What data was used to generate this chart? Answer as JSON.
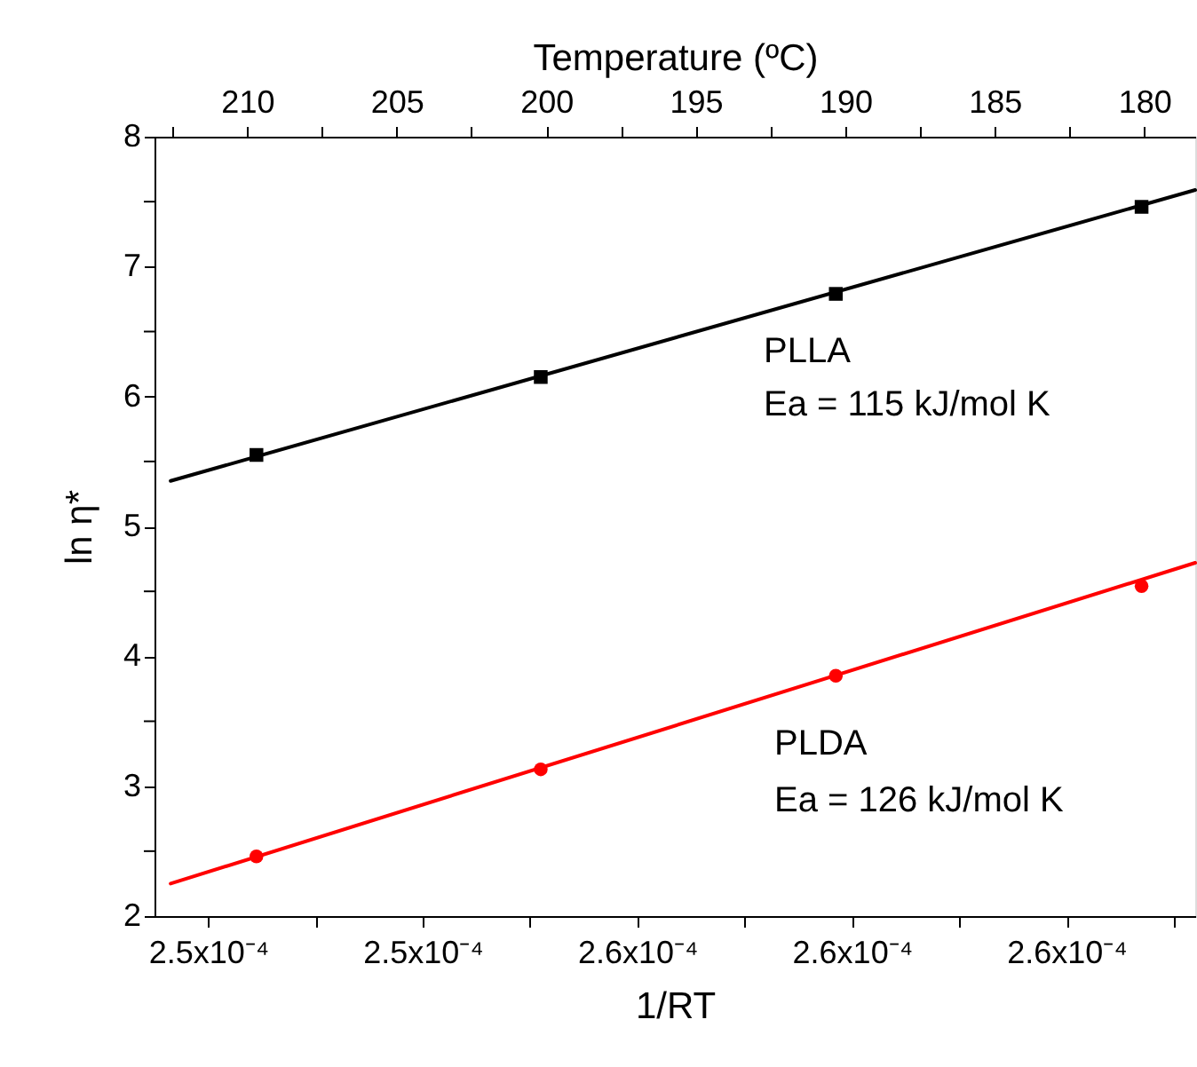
{
  "chart_data": {
    "type": "line",
    "xlabel": "1/RT",
    "ylabel": "ln η*",
    "x2label": "Temperature (ºC)",
    "xlim": [
      0.000247,
      0.0002664
    ],
    "xticks": [
      {
        "value": 0.000248,
        "label": "2.5x10⁻⁴"
      },
      {
        "value": 0.00025,
        "label": null
      },
      {
        "value": 0.000252,
        "label": "2.5x10⁻⁴"
      },
      {
        "value": 0.000254,
        "label": null
      },
      {
        "value": 0.000256,
        "label": "2.6x10⁻⁴"
      },
      {
        "value": 0.000258,
        "label": null
      },
      {
        "value": 0.00026,
        "label": "2.6x10⁻⁴"
      },
      {
        "value": 0.000262,
        "label": null
      },
      {
        "value": 0.000264,
        "label": "2.6x10⁻⁴"
      },
      {
        "value": 0.000266,
        "label": null
      }
    ],
    "ylim": [
      2,
      8
    ],
    "yticks": [
      2,
      {
        "value": 2.5,
        "label": null
      },
      3,
      {
        "value": 3.5,
        "label": null
      },
      4,
      {
        "value": 4.5,
        "label": null
      },
      5,
      {
        "value": 5.5,
        "label": null
      },
      6,
      {
        "value": 6.5,
        "label": null
      },
      7,
      {
        "value": 7.5,
        "label": null
      },
      8
    ],
    "x2lim": [
      213.1,
      178.3
    ],
    "x2ticks": [
      {
        "value": 212.5,
        "label": null
      },
      210,
      {
        "value": 207.5,
        "label": null
      },
      205,
      {
        "value": 202.5,
        "label": null
      },
      200,
      {
        "value": 197.5,
        "label": null
      },
      195,
      {
        "value": 192.5,
        "label": null
      },
      190,
      {
        "value": 187.5,
        "label": null
      },
      185,
      {
        "value": 182.5,
        "label": null
      },
      180
    ],
    "grid": false,
    "line_style": "solid",
    "series": [
      {
        "type": "scatter",
        "marker": "square",
        "color": "#000000",
        "x": [
          0.0002489,
          0.0002542,
          0.0002597,
          0.0002654
        ],
        "values": [
          5.55,
          6.15,
          6.79,
          7.46
        ]
      },
      {
        "marker": "none",
        "color": "#000000",
        "x": [
          0.0002473,
          0.0002664
        ],
        "values": [
          5.35,
          7.59
        ]
      },
      {
        "type": "scatter",
        "marker": "circle",
        "color": "#ff0000",
        "x": [
          0.0002489,
          0.0002542,
          0.0002597,
          0.0002654
        ],
        "values": [
          2.46,
          3.13,
          3.85,
          4.54
        ]
      },
      {
        "marker": "none",
        "color": "#ff0000",
        "x": [
          0.0002473,
          0.0002664
        ],
        "values": [
          2.25,
          4.72
        ]
      }
    ],
    "annotations": [
      "PLLA",
      "Ea = 115 kJ/mol K",
      "PLDA",
      "Ea = 126 kJ/mol K"
    ]
  }
}
